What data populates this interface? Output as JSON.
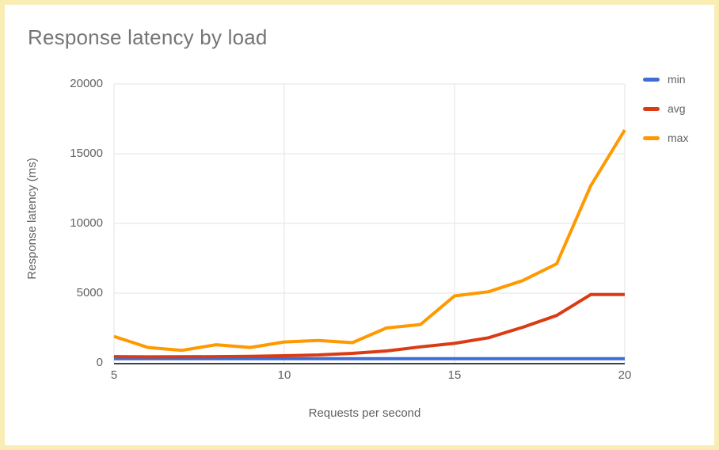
{
  "page": {
    "border_color": "#faedb4",
    "background_color": "#ffffff",
    "title_color": "#757575",
    "tick_color": "#616161",
    "gridline_color": "#e3e3e3",
    "axis_line_color": "#424242"
  },
  "chart_data": {
    "type": "line",
    "title": "Response latency by load",
    "xlabel": "Requests per second",
    "ylabel": "Response latency (ms)",
    "x": [
      5,
      6,
      7,
      8,
      9,
      10,
      11,
      12,
      13,
      14,
      15,
      16,
      17,
      18,
      19,
      20
    ],
    "series": [
      {
        "name": "min",
        "color": "#3e6dd6",
        "values": [
          300,
          300,
          300,
          300,
          300,
          300,
          300,
          300,
          300,
          300,
          300,
          300,
          300,
          300,
          300,
          300
        ]
      },
      {
        "name": "avg",
        "color": "#db3b13",
        "values": [
          450,
          430,
          440,
          450,
          470,
          510,
          570,
          680,
          850,
          1150,
          1400,
          1800,
          2550,
          3400,
          4900,
          4900
        ]
      },
      {
        "name": "max",
        "color": "#ff9900",
        "values": [
          1900,
          1100,
          900,
          1300,
          1100,
          1500,
          1600,
          1450,
          2500,
          2750,
          4800,
          5100,
          5900,
          7100,
          12700,
          16700
        ]
      }
    ],
    "xlim": [
      5,
      20
    ],
    "ylim": [
      0,
      20000
    ],
    "x_ticks": [
      5,
      10,
      15,
      20
    ],
    "y_ticks": [
      0,
      5000,
      10000,
      15000,
      20000
    ],
    "grid": true,
    "legend_position": "right"
  }
}
